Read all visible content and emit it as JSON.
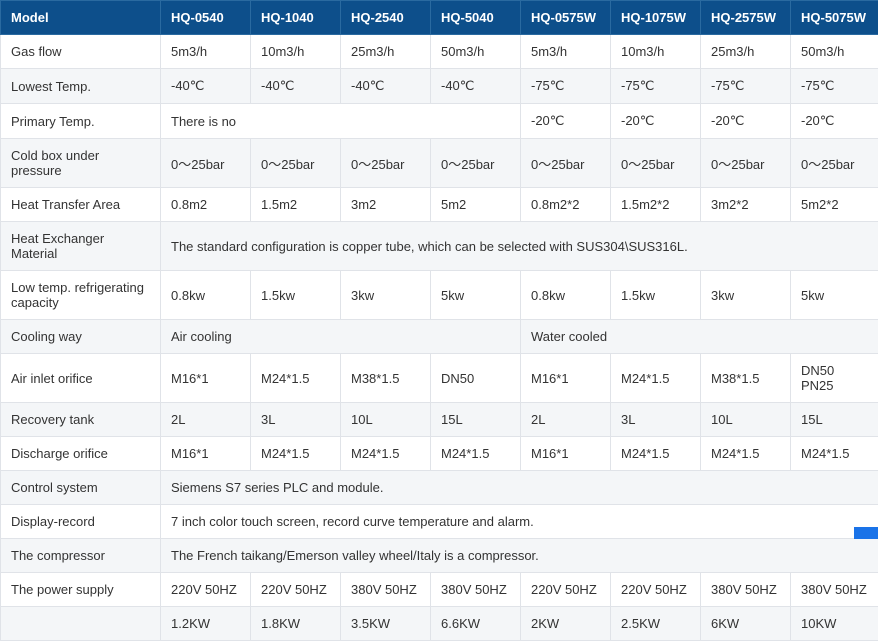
{
  "table": {
    "header_bg": "#0d4f8b",
    "header_fg": "#ffffff",
    "row_alt_bg": "#f4f6f8",
    "border_color": "#e0e3e8",
    "columns": [
      "Model",
      "HQ-0540",
      "HQ-1040",
      "HQ-2540",
      "HQ-5040",
      "HQ-0575W",
      "HQ-1075W",
      "HQ-2575W",
      "HQ-5075W"
    ],
    "rows": [
      {
        "label": "Gas flow",
        "cells": [
          "5m3/h",
          "10m3/h",
          "25m3/h",
          "50m3/h",
          "5m3/h",
          "10m3/h",
          "25m3/h",
          "50m3/h"
        ]
      },
      {
        "label": "Lowest Temp.",
        "cells": [
          "-40℃",
          "-40℃",
          "-40℃",
          "-40℃",
          "-75℃",
          "-75℃",
          "-75℃",
          "-75℃"
        ]
      },
      {
        "label": "Primary Temp.",
        "spans": [
          {
            "text": "There is no",
            "colspan": 4
          },
          {
            "text": "-20℃"
          },
          {
            "text": "-20℃"
          },
          {
            "text": "-20℃"
          },
          {
            "text": "-20℃"
          }
        ]
      },
      {
        "label": "Cold box under pressure",
        "cells": [
          "0～25bar",
          "0～25bar",
          "0～25bar",
          "0～25bar",
          "0～25bar",
          "0～25bar",
          "0～25bar",
          "0～25bar"
        ]
      },
      {
        "label": "Heat Transfer Area",
        "cells": [
          "0.8m2",
          "1.5m2",
          "3m2",
          "5m2",
          "0.8m2*2",
          "1.5m2*2",
          "3m2*2",
          "5m2*2"
        ]
      },
      {
        "label": "Heat Exchanger Material",
        "spans": [
          {
            "text": "The standard configuration is copper tube, which can be selected with SUS304\\SUS316L.",
            "colspan": 8
          }
        ]
      },
      {
        "label": "Low temp. refrigerating capacity",
        "cells": [
          "0.8kw",
          "1.5kw",
          "3kw",
          "5kw",
          "0.8kw",
          "1.5kw",
          "3kw",
          "5kw"
        ]
      },
      {
        "label": "Cooling way",
        "spans": [
          {
            "text": "Air cooling",
            "colspan": 4
          },
          {
            "text": "Water cooled",
            "colspan": 4
          }
        ]
      },
      {
        "label": "Air inlet orifice",
        "cells": [
          "M16*1",
          "M24*1.5",
          "M38*1.5",
          "DN50",
          "M16*1",
          "M24*1.5",
          "M38*1.5",
          "DN50 PN25"
        ]
      },
      {
        "label": "Recovery tank",
        "cells": [
          "2L",
          "3L",
          "10L",
          "15L",
          "2L",
          "3L",
          "10L",
          "15L"
        ]
      },
      {
        "label": "Discharge orifice",
        "cells": [
          "M16*1",
          "M24*1.5",
          "M24*1.5",
          "M24*1.5",
          "M16*1",
          "M24*1.5",
          "M24*1.5",
          "M24*1.5"
        ]
      },
      {
        "label": "Control system",
        "spans": [
          {
            "text": "Siemens S7 series PLC and module.",
            "colspan": 8
          }
        ]
      },
      {
        "label": "Display-record",
        "spans": [
          {
            "text": "7 inch color touch screen, record curve temperature and alarm.",
            "colspan": 8
          }
        ]
      },
      {
        "label": "The compressor",
        "spans": [
          {
            "text": "The French taikang/Emerson valley wheel/Italy is a compressor.",
            "colspan": 8
          }
        ]
      },
      {
        "label": "The power supply",
        "cells": [
          "220V 50HZ",
          "220V 50HZ",
          "380V 50HZ",
          "380V 50HZ",
          "220V 50HZ",
          "220V 50HZ",
          "380V 50HZ",
          "380V 50HZ"
        ]
      },
      {
        "label": "",
        "cells": [
          "1.2KW",
          "1.8KW",
          "3.5KW",
          "6.6KW",
          "2KW",
          "2.5KW",
          "6KW",
          "10KW"
        ]
      }
    ]
  }
}
